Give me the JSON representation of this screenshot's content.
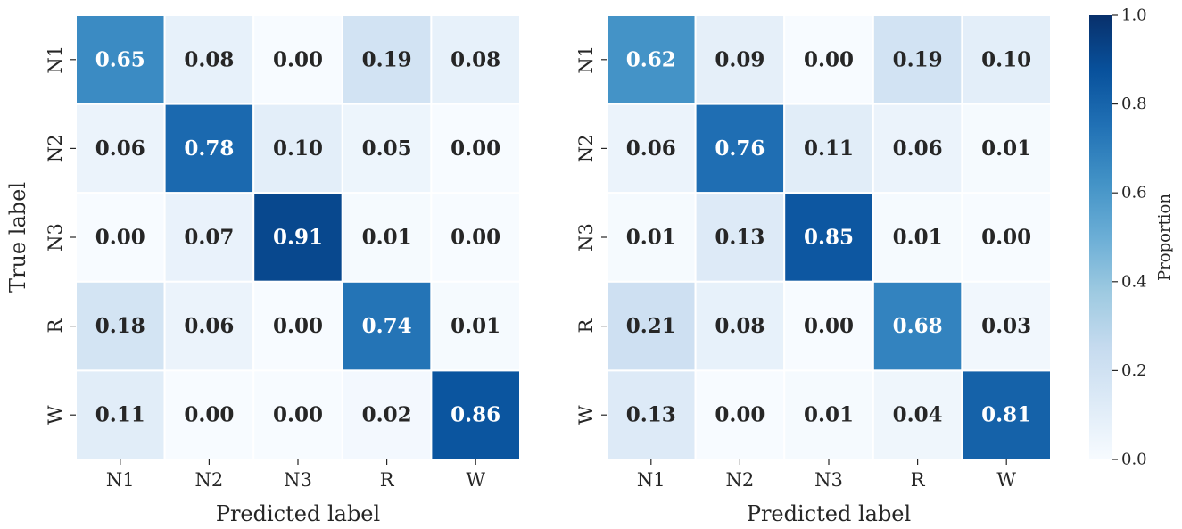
{
  "chart_data": [
    {
      "type": "heatmap",
      "title": "",
      "xlabel": "Predicted label",
      "ylabel": "True label",
      "x_categories": [
        "N1",
        "N2",
        "N3",
        "R",
        "W"
      ],
      "y_categories": [
        "N1",
        "N2",
        "N3",
        "R",
        "W"
      ],
      "values": [
        [
          0.65,
          0.08,
          0.0,
          0.19,
          0.08
        ],
        [
          0.06,
          0.78,
          0.1,
          0.05,
          0.0
        ],
        [
          0.0,
          0.07,
          0.91,
          0.01,
          0.0
        ],
        [
          0.18,
          0.06,
          0.0,
          0.74,
          0.01
        ],
        [
          0.11,
          0.0,
          0.0,
          0.02,
          0.86
        ]
      ],
      "value_format": "0.00"
    },
    {
      "type": "heatmap",
      "title": "",
      "xlabel": "Predicted label",
      "ylabel": "",
      "x_categories": [
        "N1",
        "N2",
        "N3",
        "R",
        "W"
      ],
      "y_categories": [
        "N1",
        "N2",
        "N3",
        "R",
        "W"
      ],
      "values": [
        [
          0.62,
          0.09,
          0.0,
          0.19,
          0.1
        ],
        [
          0.06,
          0.76,
          0.11,
          0.06,
          0.01
        ],
        [
          0.01,
          0.13,
          0.85,
          0.01,
          0.0
        ],
        [
          0.21,
          0.08,
          0.0,
          0.68,
          0.03
        ],
        [
          0.13,
          0.0,
          0.01,
          0.04,
          0.81
        ]
      ],
      "value_format": "0.00"
    }
  ],
  "colorbar": {
    "label": "Proportion",
    "range": [
      0.0,
      1.0
    ],
    "ticks": [
      "0.0",
      "0.2",
      "0.4",
      "0.6",
      "0.8",
      "1.0"
    ],
    "colormap": "Blues",
    "colormap_stops": [
      "#f7fbff",
      "#deebf7",
      "#c6dbef",
      "#9ecae1",
      "#6baed6",
      "#4292c6",
      "#2171b5",
      "#08519c",
      "#08306b"
    ]
  },
  "colors": {
    "text_on_light": "#262626",
    "text_on_dark": "#ffffff",
    "cell_separator": "#ffffff",
    "tick_color": "#262626"
  }
}
